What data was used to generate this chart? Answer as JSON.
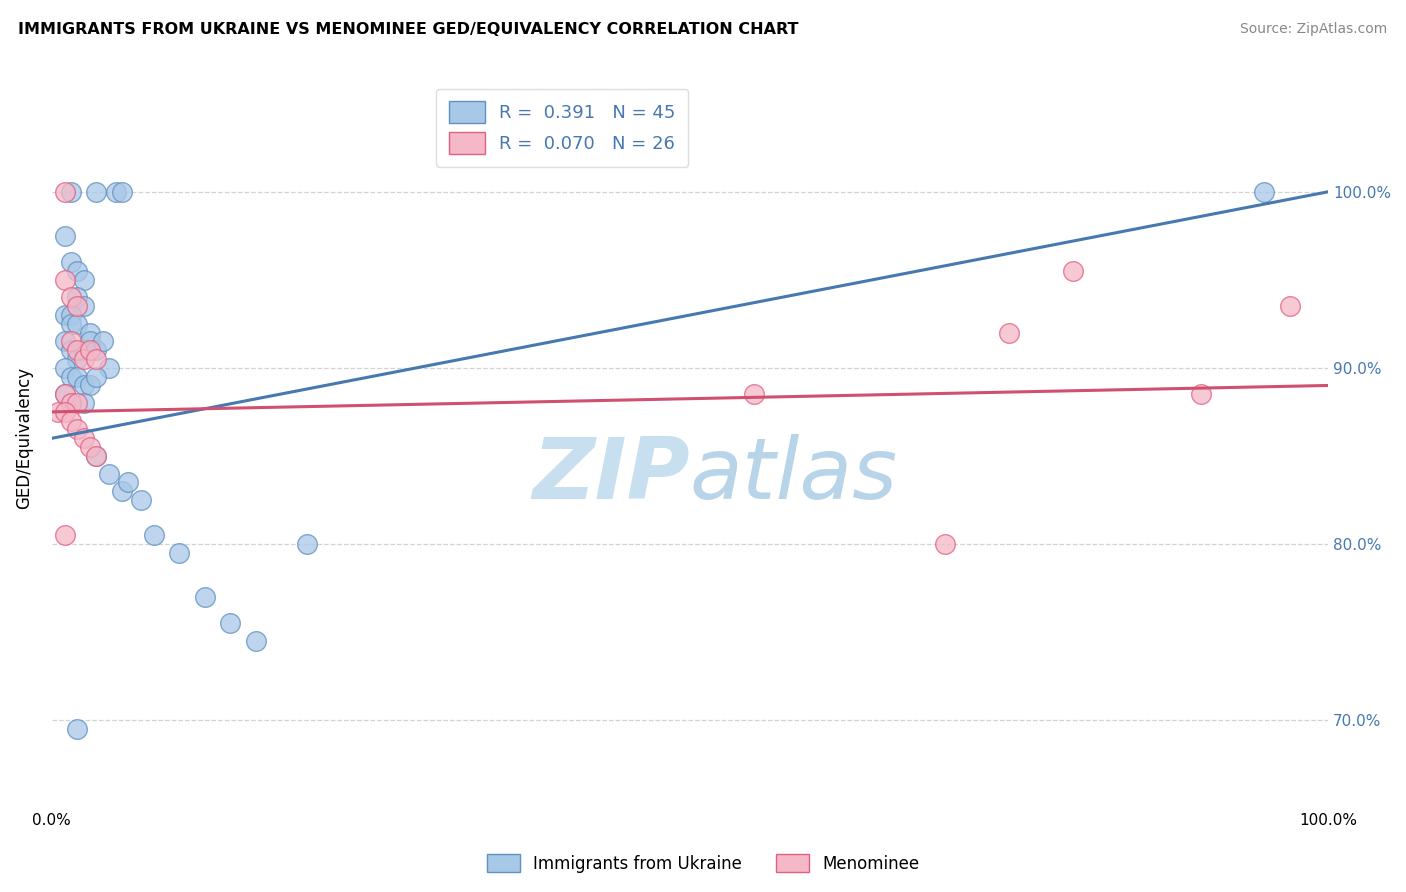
{
  "title": "IMMIGRANTS FROM UKRAINE VS MENOMINEE GED/EQUIVALENCY CORRELATION CHART",
  "source": "Source: ZipAtlas.com",
  "ylabel": "GED/Equivalency",
  "legend_label1": "Immigrants from Ukraine",
  "legend_label2": "Menominee",
  "R1": "0.391",
  "N1": "45",
  "R2": "0.070",
  "N2": "26",
  "color_blue_fill": "#a8c8e8",
  "color_pink_fill": "#f4b8c8",
  "color_blue_edge": "#6090c0",
  "color_pink_edge": "#e06080",
  "color_blue_line": "#4878b0",
  "color_pink_line": "#d05070",
  "watermark_color": "#c8dff0",
  "blue_scatter_x": [
    1.5,
    3.5,
    5.0,
    5.5,
    1.0,
    1.5,
    2.0,
    2.5,
    2.0,
    2.5,
    1.0,
    1.5,
    1.5,
    2.0,
    3.0,
    1.0,
    1.5,
    2.0,
    2.5,
    3.0,
    3.5,
    4.0,
    4.5,
    1.0,
    1.5,
    2.0,
    2.5,
    3.0,
    3.5,
    1.0,
    1.5,
    2.5,
    3.5,
    4.5,
    5.5,
    6.0,
    7.0,
    8.0,
    10.0,
    12.0,
    14.0,
    16.0,
    20.0,
    95.0,
    2.0
  ],
  "blue_scatter_y": [
    100.0,
    100.0,
    100.0,
    100.0,
    97.5,
    96.0,
    95.5,
    95.0,
    94.0,
    93.5,
    93.0,
    93.0,
    92.5,
    92.5,
    92.0,
    91.5,
    91.0,
    90.5,
    91.0,
    91.5,
    91.0,
    91.5,
    90.0,
    90.0,
    89.5,
    89.5,
    89.0,
    89.0,
    89.5,
    88.5,
    88.0,
    88.0,
    85.0,
    84.0,
    83.0,
    83.5,
    82.5,
    80.5,
    79.5,
    77.0,
    75.5,
    74.5,
    80.0,
    100.0,
    69.5
  ],
  "pink_scatter_x": [
    1.0,
    1.5,
    2.0,
    2.5,
    3.0,
    3.5,
    1.0,
    1.5,
    2.0,
    0.5,
    1.0,
    1.5,
    2.0,
    2.5,
    3.0,
    3.5,
    1.0,
    1.5,
    2.0,
    1.0,
    55.0,
    70.0,
    75.0,
    80.0,
    90.0,
    97.0
  ],
  "pink_scatter_y": [
    100.0,
    91.5,
    91.0,
    90.5,
    91.0,
    90.5,
    88.5,
    88.0,
    88.0,
    87.5,
    87.5,
    87.0,
    86.5,
    86.0,
    85.5,
    85.0,
    95.0,
    94.0,
    93.5,
    80.5,
    88.5,
    80.0,
    92.0,
    95.5,
    88.5,
    93.5
  ],
  "blue_trend": [
    86.0,
    100.0
  ],
  "pink_trend": [
    87.5,
    89.0
  ],
  "xlim": [
    0,
    100
  ],
  "ylim": [
    65,
    107
  ],
  "yticks": [
    70,
    80,
    90,
    100
  ],
  "xticks": [
    0,
    100
  ],
  "background_color": "#ffffff",
  "grid_color": "#c8c8c8"
}
